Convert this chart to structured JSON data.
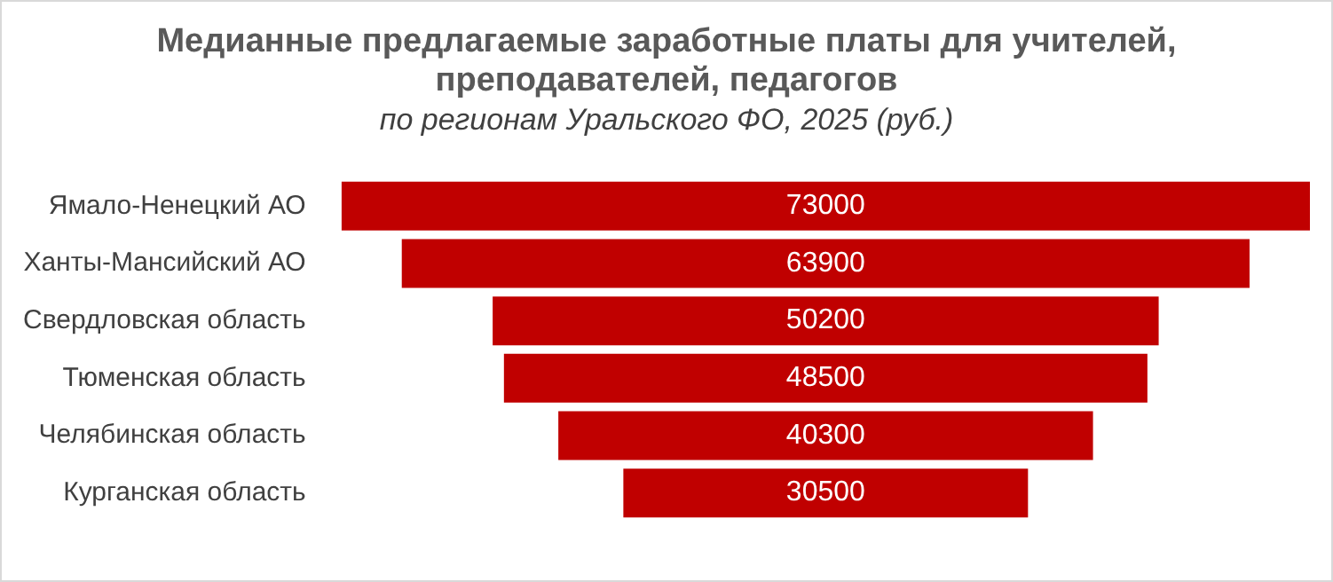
{
  "chart_data": {
    "type": "other",
    "title": "Медианные предлагаемые заработные платы  для учителей, преподавателей, педагогов",
    "subtitle": "по  регионам Уральского ФО, 2025 (руб.)",
    "categories": [
      "Ямало-Ненецкий АО",
      "Ханты-Мансийский АО",
      "Свердловская область",
      "Тюменская область",
      "Челябинская область",
      "Курганская область"
    ],
    "values": [
      73000,
      63900,
      50200,
      48500,
      40300,
      30500
    ],
    "color": "#c00000",
    "data_labels": true
  }
}
